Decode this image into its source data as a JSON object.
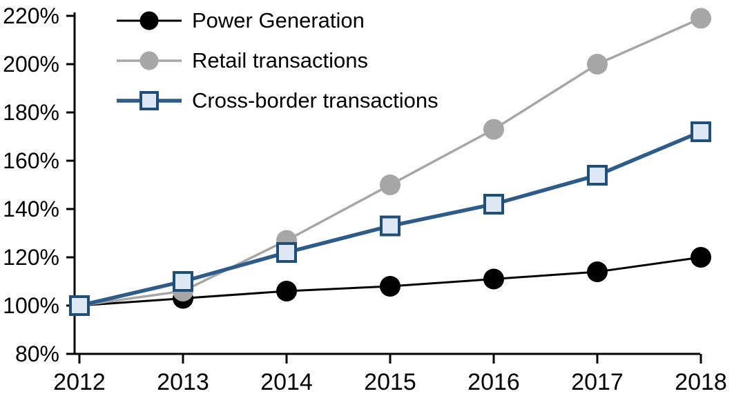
{
  "chart_data": {
    "type": "line",
    "title": "",
    "x": [
      2012,
      2013,
      2014,
      2015,
      2016,
      2017,
      2018
    ],
    "xtick_labels": [
      "2012",
      "2013",
      "2014",
      "2015",
      "2016",
      "2017",
      "2018"
    ],
    "ylim": [
      80,
      220
    ],
    "ytick_step": 20,
    "ytick_labels": [
      "80%",
      "100%",
      "120%",
      "140%",
      "160%",
      "180%",
      "200%",
      "220%"
    ],
    "grid": false,
    "legend_position": "top-left",
    "axis_color": "#000000",
    "background_color": "#ffffff",
    "series": [
      {
        "name": "Power Generation",
        "values": [
          100,
          103,
          106,
          108,
          111,
          114,
          120
        ],
        "color": "#000000",
        "marker": "circle",
        "marker_fill": "#000000",
        "marker_stroke": "#000000",
        "line_width": 3
      },
      {
        "name": "Retail transactions",
        "values": [
          100,
          106,
          127,
          150,
          173,
          200,
          219
        ],
        "color": "#A6A6A6",
        "marker": "circle",
        "marker_fill": "#A6A6A6",
        "marker_stroke": "#A6A6A6",
        "line_width": 3.5
      },
      {
        "name": "Cross-border transactions",
        "values": [
          100,
          110,
          122,
          133,
          142,
          154,
          172
        ],
        "color": "#2E5C8A",
        "marker": "square",
        "marker_fill": "#DEE8F4",
        "marker_stroke": "#1F4E79",
        "line_width": 5.5
      }
    ]
  }
}
